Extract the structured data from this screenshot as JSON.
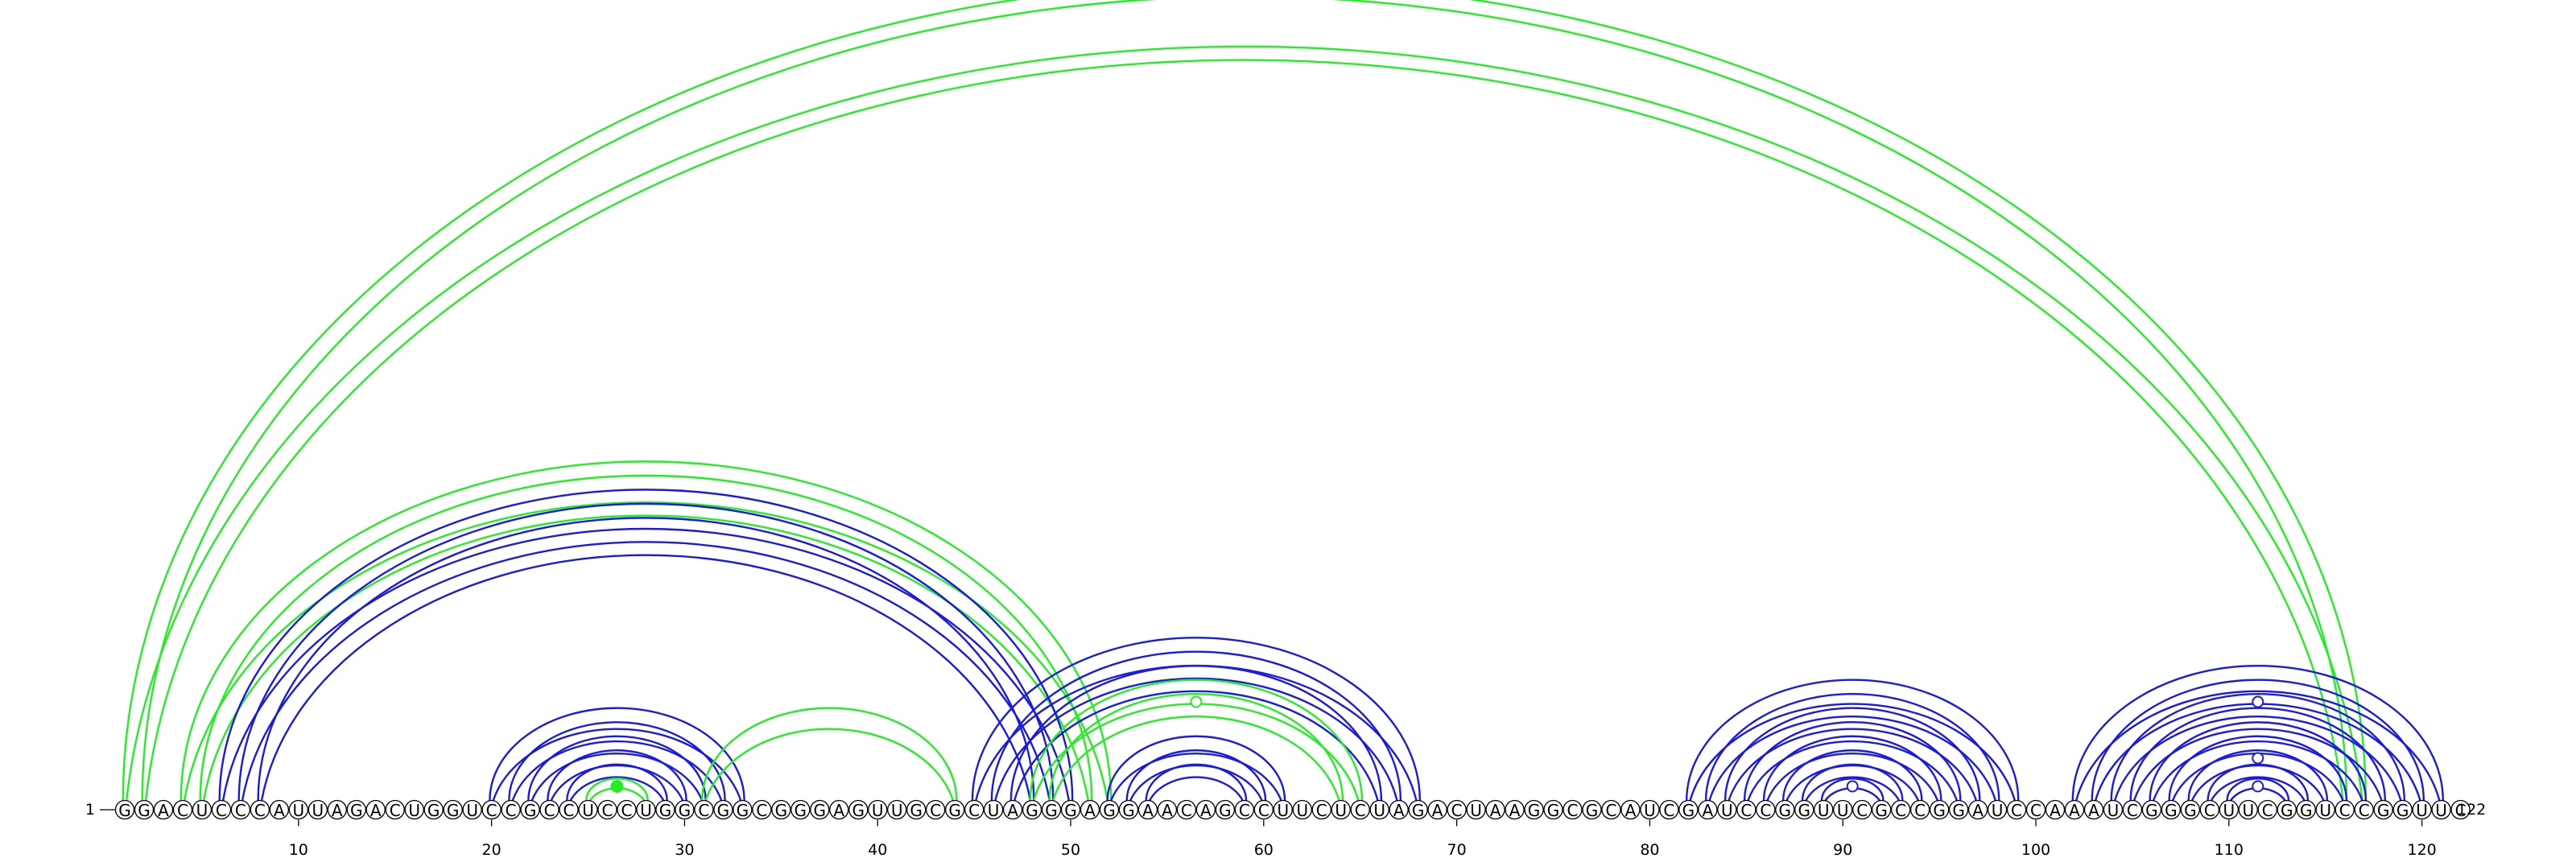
{
  "sequence": "GGACUCCCAUUAGACUGGUCCGCCUCCUGGCGGCGGGAGUUGCGCUAGGGAGGAACAGCCUUCUCUAGACUAAGGCGCAUCGAUCCGGUUCGCCGGAUCCAAAUCGGGCUUCGGUCCGGUUC",
  "start_label": "1",
  "end_label": "122",
  "colors": {
    "green": "#22ee22",
    "blue": "#1a1ae6"
  },
  "ticks": [
    10,
    20,
    30,
    40,
    50,
    60,
    70,
    80,
    90,
    100,
    110,
    120
  ],
  "arcs": [
    {
      "i": 1,
      "j": 117,
      "color": "green"
    },
    {
      "i": 2,
      "j": 116,
      "color": "green"
    },
    {
      "i": 4,
      "j": 52,
      "color": "green"
    },
    {
      "i": 5,
      "j": 51,
      "color": "green"
    },
    {
      "i": 6,
      "j": 50,
      "color": "blue"
    },
    {
      "i": 7,
      "j": 49,
      "color": "blue"
    },
    {
      "i": 8,
      "j": 48,
      "color": "blue"
    },
    {
      "i": 20,
      "j": 33,
      "color": "blue"
    },
    {
      "i": 21,
      "j": 32,
      "color": "blue"
    },
    {
      "i": 22,
      "j": 31,
      "color": "blue"
    },
    {
      "i": 23,
      "j": 30,
      "color": "blue"
    },
    {
      "i": 24,
      "j": 29,
      "color": "blue"
    },
    {
      "i": 25,
      "j": 28,
      "color": "green"
    },
    {
      "i": 31,
      "j": 44,
      "color": "green"
    },
    {
      "i": 45,
      "j": 68,
      "color": "blue"
    },
    {
      "i": 46,
      "j": 67,
      "color": "blue"
    },
    {
      "i": 47,
      "j": 66,
      "color": "blue"
    },
    {
      "i": 48,
      "j": 65,
      "color": "green"
    },
    {
      "i": 49,
      "j": 64,
      "color": "green"
    },
    {
      "i": 52,
      "j": 61,
      "color": "blue"
    },
    {
      "i": 53,
      "j": 60,
      "color": "blue"
    },
    {
      "i": 54,
      "j": 59,
      "color": "blue"
    },
    {
      "i": 82,
      "j": 99,
      "color": "blue"
    },
    {
      "i": 83,
      "j": 98,
      "color": "blue"
    },
    {
      "i": 84,
      "j": 97,
      "color": "blue"
    },
    {
      "i": 85,
      "j": 96,
      "color": "blue"
    },
    {
      "i": 86,
      "j": 95,
      "color": "blue"
    },
    {
      "i": 87,
      "j": 94,
      "color": "blue"
    },
    {
      "i": 88,
      "j": 93,
      "color": "blue"
    },
    {
      "i": 89,
      "j": 92,
      "color": "blue"
    },
    {
      "i": 102,
      "j": 121,
      "color": "blue"
    },
    {
      "i": 103,
      "j": 120,
      "color": "blue"
    },
    {
      "i": 104,
      "j": 119,
      "color": "blue"
    },
    {
      "i": 105,
      "j": 118,
      "color": "blue"
    },
    {
      "i": 106,
      "j": 117,
      "color": "blue"
    },
    {
      "i": 107,
      "j": 116,
      "color": "blue"
    },
    {
      "i": 108,
      "j": 115,
      "color": "blue"
    },
    {
      "i": 109,
      "j": 114,
      "color": "blue"
    },
    {
      "i": 110,
      "j": 113,
      "color": "blue"
    }
  ],
  "markers": [
    {
      "pos": 26.5,
      "level": 1,
      "color": "green",
      "filled": true
    },
    {
      "pos": 56.5,
      "level": 7,
      "color": "green",
      "filled": false
    },
    {
      "pos": 90.5,
      "level": 1,
      "color": "blue",
      "filled": false
    },
    {
      "pos": 111.5,
      "level": 1,
      "color": "blue",
      "filled": false
    },
    {
      "pos": 111.5,
      "level": 3,
      "color": "blue",
      "filled": false
    },
    {
      "pos": 111.5,
      "level": 7,
      "color": "blue",
      "filled": false
    }
  ]
}
